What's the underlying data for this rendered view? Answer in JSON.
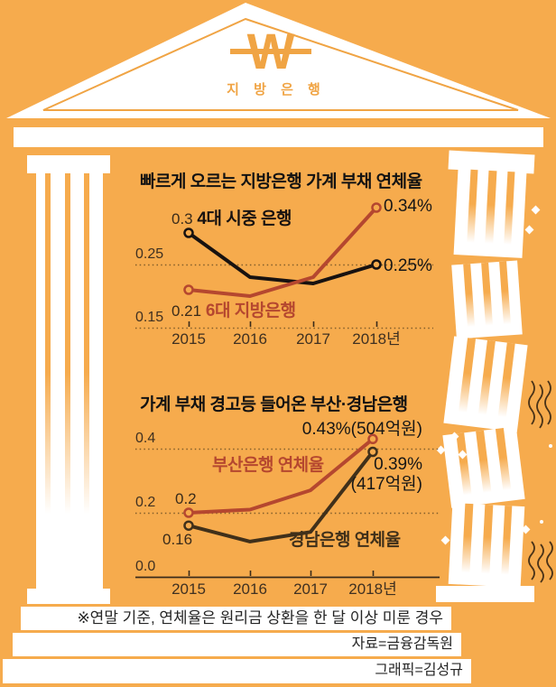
{
  "colors": {
    "background": "#F6AB4D",
    "accent_orange": "#F0A444",
    "red": "#B5472F",
    "black_line": "#181210",
    "brown_line": "#40301A"
  },
  "pediment": {
    "won_symbol": "W",
    "label": "지 방 은 행"
  },
  "chart_data": [
    {
      "type": "line",
      "title": "빠르게 오르는 지방은행 가계 부채 연체율",
      "x": [
        "2015",
        "2016",
        "2017",
        "2018년"
      ],
      "series": [
        {
          "name": "4대 시중 은행",
          "color": "#181210",
          "values": [
            0.3,
            0.23,
            0.22,
            0.25
          ],
          "start_label": "0.3",
          "end_label": "0.25%"
        },
        {
          "name": "6대 지방은행",
          "color": "#B5472F",
          "values": [
            0.21,
            0.2,
            0.23,
            0.34
          ],
          "start_label": "0.21",
          "end_label": "0.34%"
        }
      ],
      "gridlines": [
        0.25,
        0.15
      ],
      "grid_labels": [
        "0.25",
        "0.15"
      ],
      "ylim": [
        0.13,
        0.36
      ],
      "unit": "%",
      "legend_position": "inline"
    },
    {
      "type": "line",
      "title": "가계 부채 경고등 들어온 부산·경남은행",
      "x": [
        "2015",
        "2016",
        "2017",
        "2018년"
      ],
      "series": [
        {
          "name": "부산은행 연체율",
          "color": "#B5472F",
          "values": [
            0.2,
            0.21,
            0.27,
            0.43
          ],
          "start_label": "0.2",
          "end_label": "0.43%(504억원)"
        },
        {
          "name": "경남은행 연체율",
          "color": "#40301A",
          "values": [
            0.16,
            0.11,
            0.14,
            0.39
          ],
          "start_label": "0.16",
          "end_label": "0.39%\n(417억원)"
        }
      ],
      "gridlines": [
        0.4,
        0.2
      ],
      "grid_labels": [
        "0.4",
        "0.2"
      ],
      "baseline": 0.0,
      "baseline_label": "0.0",
      "ylim": [
        0,
        0.47
      ],
      "unit": "%",
      "legend_position": "inline"
    }
  ],
  "footnote": "※연말 기준, 연체율은 원리금 상환을 한 달 이상 미룬 경우",
  "source": "자료=금융감독원",
  "credit": "그래픽=김성규"
}
